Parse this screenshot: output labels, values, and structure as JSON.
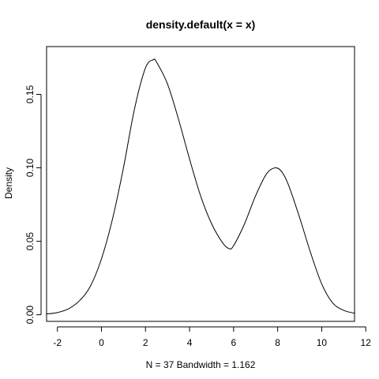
{
  "chart_data": {
    "type": "line",
    "title": "density.default(x = x)",
    "xlabel": "N = 37   Bandwidth = 1.162",
    "ylabel": "Density",
    "xlim": [
      -2.49,
      11.49
    ],
    "ylim": [
      -0.0045,
      0.1825
    ],
    "x_ticks": [
      -2,
      0,
      2,
      4,
      6,
      8,
      10,
      12
    ],
    "x_tick_labels": [
      "-2",
      "0",
      "2",
      "4",
      "6",
      "8",
      "10",
      "12"
    ],
    "y_ticks": [
      0.0,
      0.05,
      0.1,
      0.15
    ],
    "y_tick_labels": [
      "0.00",
      "0.05",
      "0.10",
      "0.15"
    ],
    "grid": false,
    "legend": "none",
    "colors": {
      "line": "#000000",
      "axes": "#000000",
      "background": "#ffffff"
    },
    "series": [
      {
        "x": [
          -2.5,
          -2.0,
          -1.5,
          -1.0,
          -0.5,
          0.0,
          0.5,
          1.0,
          1.5,
          2.0,
          2.35,
          2.5,
          3.0,
          3.5,
          4.0,
          4.5,
          5.0,
          5.5,
          5.8,
          6.0,
          6.5,
          7.0,
          7.5,
          7.9,
          8.2,
          8.5,
          9.0,
          9.5,
          10.0,
          10.5,
          11.0,
          11.5
        ],
        "y": [
          0.0005,
          0.0015,
          0.004,
          0.0095,
          0.0195,
          0.038,
          0.065,
          0.1,
          0.14,
          0.168,
          0.1735,
          0.172,
          0.157,
          0.133,
          0.106,
          0.081,
          0.062,
          0.049,
          0.045,
          0.047,
          0.062,
          0.081,
          0.096,
          0.1,
          0.097,
          0.088,
          0.066,
          0.042,
          0.021,
          0.008,
          0.003,
          0.001
        ]
      }
    ]
  }
}
